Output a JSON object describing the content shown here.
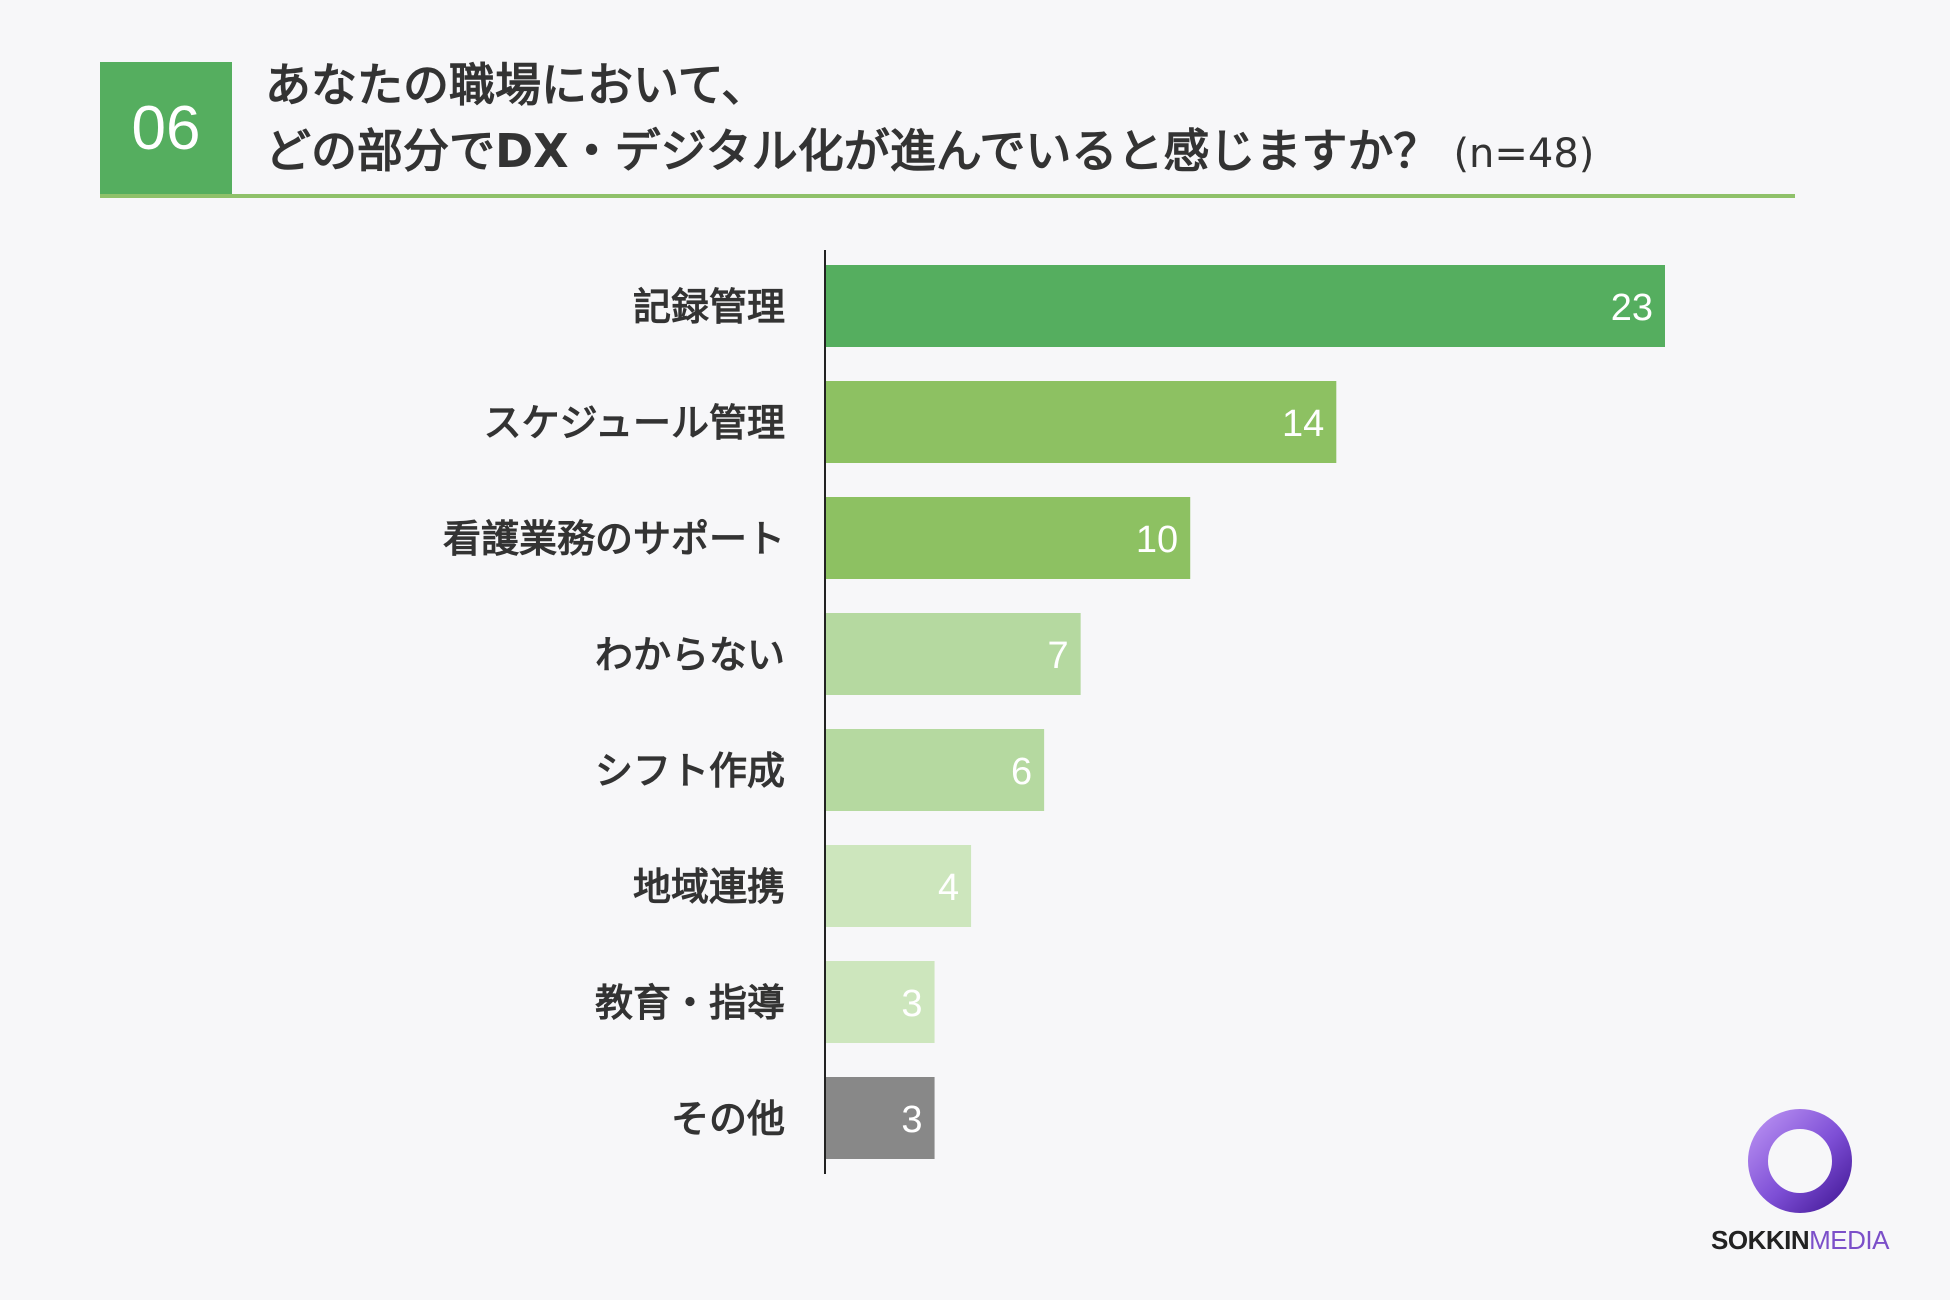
{
  "header": {
    "number": "06",
    "title_line1": "あなたの職場において、",
    "title_line2": "どの部分でDX・デジタル化が進んでいると感じますか？",
    "sample_size": "(n=48)"
  },
  "colors": {
    "accent": "#55ae5f",
    "rule": "#8fc16a",
    "axis": "#222222",
    "label_text": "#333333"
  },
  "chart_data": {
    "type": "bar",
    "orientation": "horizontal",
    "categories": [
      "記録管理",
      "スケジュール管理",
      "看護業務のサポート",
      "わからない",
      "シフト作成",
      "地域連携",
      "教育・指導",
      "その他"
    ],
    "values": [
      23,
      14,
      10,
      7,
      6,
      4,
      3,
      3
    ],
    "bar_colors": [
      "#55ae5f",
      "#8dc162",
      "#8dc162",
      "#b5d9a0",
      "#b5d9a0",
      "#cde6bd",
      "#cde6bd",
      "#888888"
    ],
    "title": "",
    "xlabel": "",
    "ylabel": "",
    "xlim": [
      0,
      23
    ],
    "grid": false,
    "legend": "none"
  },
  "branding": {
    "logo_icon": "ring-logo-icon",
    "logo_word1": "SOKKIN",
    "logo_word2": "MEDIA"
  }
}
